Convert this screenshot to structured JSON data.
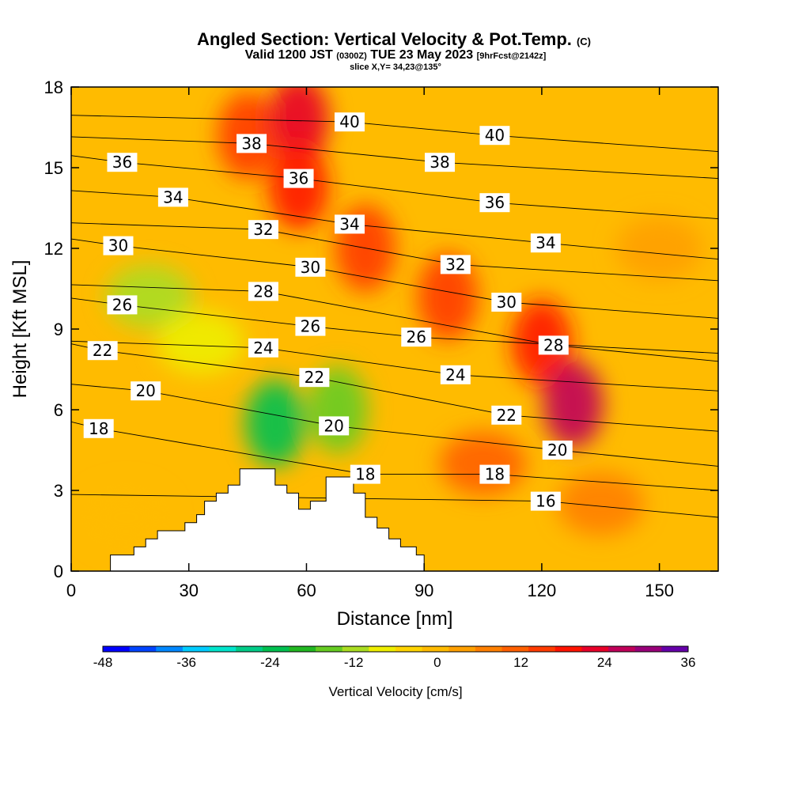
{
  "header": {
    "title": "Angled Section: Vertical Velocity & Pot.Temp.",
    "title_unit": "(C)",
    "valid_prefix": "Valid 1200 JST",
    "valid_utc": "(0300Z)",
    "valid_date": "TUE 23 May 2023",
    "valid_fcst": "[9hrFcst@2142z]",
    "slice": "slice X,Y= 34,23@135°"
  },
  "chart_data": {
    "type": "heatmap",
    "title": "Angled Section: Vertical Velocity & Pot.Temp.",
    "xlabel": "Distance [nm]",
    "ylabel": "Height [Kft MSL]",
    "xlim": [
      0,
      165
    ],
    "ylim": [
      0,
      18
    ],
    "xticks": [
      0,
      30,
      60,
      90,
      120,
      150
    ],
    "yticks": [
      0,
      3,
      6,
      9,
      12,
      15,
      18
    ],
    "field": "Vertical Velocity",
    "colorbar": {
      "label": "Vertical Velocity [cm/s]",
      "min": -48,
      "max": 36,
      "step": 4,
      "tick_values": [
        -48,
        -36,
        -24,
        -12,
        0,
        12,
        24,
        36
      ],
      "colors": [
        "#0000ff",
        "#0044ff",
        "#0088ff",
        "#00ccff",
        "#00e5cc",
        "#00cc88",
        "#00c050",
        "#22b822",
        "#66cc22",
        "#aadd22",
        "#eeee00",
        "#ffd400",
        "#ffbb00",
        "#ffa000",
        "#ff8000",
        "#ff6000",
        "#ff3c00",
        "#ff1400",
        "#e8002a",
        "#c0005a",
        "#99007a",
        "#6600aa"
      ]
    },
    "velocity_cells": [
      {
        "x": 14,
        "y": 2.0,
        "v": 2
      },
      {
        "x": 45,
        "y": 16.2,
        "v": 16
      },
      {
        "x": 58,
        "y": 16.8,
        "v": 26
      },
      {
        "x": 58,
        "y": 14.3,
        "v": 20
      },
      {
        "x": 75,
        "y": 12.0,
        "v": 18
      },
      {
        "x": 120,
        "y": 8.5,
        "v": 22
      },
      {
        "x": 128,
        "y": 6.2,
        "v": 28
      },
      {
        "x": 96,
        "y": 10.2,
        "v": 16
      },
      {
        "x": 52,
        "y": 5.5,
        "v": -22
      },
      {
        "x": 68,
        "y": 6.0,
        "v": -16
      },
      {
        "x": 20,
        "y": 10.2,
        "v": -12
      },
      {
        "x": 33,
        "y": 8.5,
        "v": -8
      },
      {
        "x": 135,
        "y": 2.5,
        "v": 8
      },
      {
        "x": 150,
        "y": 12.0,
        "v": 6
      },
      {
        "x": 105,
        "y": 4.0,
        "v": 14
      }
    ],
    "contour_series": {
      "name": "Pot.Temp.",
      "labels": [
        {
          "value": 40,
          "x": 71,
          "y": 16.7
        },
        {
          "value": 40,
          "x": 108,
          "y": 16.2
        },
        {
          "value": 38,
          "x": 46,
          "y": 15.9
        },
        {
          "value": 38,
          "x": 94,
          "y": 15.2
        },
        {
          "value": 36,
          "x": 13,
          "y": 15.2
        },
        {
          "value": 36,
          "x": 58,
          "y": 14.6
        },
        {
          "value": 36,
          "x": 108,
          "y": 13.7
        },
        {
          "value": 34,
          "x": 26,
          "y": 13.9
        },
        {
          "value": 34,
          "x": 71,
          "y": 12.9
        },
        {
          "value": 34,
          "x": 121,
          "y": 12.2
        },
        {
          "value": 32,
          "x": 49,
          "y": 12.7
        },
        {
          "value": 32,
          "x": 98,
          "y": 11.4
        },
        {
          "value": 30,
          "x": 12,
          "y": 12.1
        },
        {
          "value": 30,
          "x": 61,
          "y": 11.3
        },
        {
          "value": 30,
          "x": 111,
          "y": 10.0
        },
        {
          "value": 28,
          "x": 49,
          "y": 10.4
        },
        {
          "value": 28,
          "x": 123,
          "y": 8.4
        },
        {
          "value": 26,
          "x": 13,
          "y": 9.9
        },
        {
          "value": 26,
          "x": 61,
          "y": 9.1
        },
        {
          "value": 26,
          "x": 88,
          "y": 8.7
        },
        {
          "value": 24,
          "x": 49,
          "y": 8.3
        },
        {
          "value": 24,
          "x": 98,
          "y": 7.3
        },
        {
          "value": 22,
          "x": 8,
          "y": 8.2
        },
        {
          "value": 22,
          "x": 62,
          "y": 7.2
        },
        {
          "value": 22,
          "x": 111,
          "y": 5.8
        },
        {
          "value": 20,
          "x": 19,
          "y": 6.7
        },
        {
          "value": 20,
          "x": 67,
          "y": 5.4
        },
        {
          "value": 20,
          "x": 124,
          "y": 4.5
        },
        {
          "value": 18,
          "x": 7,
          "y": 5.3
        },
        {
          "value": 18,
          "x": 75,
          "y": 3.6
        },
        {
          "value": 18,
          "x": 108,
          "y": 3.6
        },
        {
          "value": 16,
          "x": 121,
          "y": 2.6
        }
      ]
    },
    "terrain_kft": [
      [
        10,
        0.6
      ],
      [
        16,
        0.6
      ],
      [
        16,
        0.9
      ],
      [
        19,
        0.9
      ],
      [
        19,
        1.2
      ],
      [
        22,
        1.2
      ],
      [
        22,
        1.5
      ],
      [
        29,
        1.5
      ],
      [
        29,
        1.8
      ],
      [
        32,
        1.8
      ],
      [
        32,
        2.1
      ],
      [
        34,
        2.1
      ],
      [
        34,
        2.6
      ],
      [
        37,
        2.6
      ],
      [
        37,
        2.9
      ],
      [
        40,
        2.9
      ],
      [
        40,
        3.2
      ],
      [
        43,
        3.2
      ],
      [
        43,
        3.8
      ],
      [
        52,
        3.8
      ],
      [
        52,
        3.2
      ],
      [
        55,
        3.2
      ],
      [
        55,
        2.9
      ],
      [
        58,
        2.9
      ],
      [
        58,
        2.3
      ],
      [
        61,
        2.3
      ],
      [
        61,
        2.6
      ],
      [
        65,
        2.6
      ],
      [
        65,
        3.5
      ],
      [
        72,
        3.5
      ],
      [
        72,
        2.9
      ],
      [
        75,
        2.9
      ],
      [
        75,
        2.0
      ],
      [
        78,
        2.0
      ],
      [
        78,
        1.6
      ],
      [
        81,
        1.6
      ],
      [
        81,
        1.2
      ],
      [
        84,
        1.2
      ],
      [
        84,
        0.9
      ],
      [
        88,
        0.9
      ],
      [
        88,
        0.6
      ],
      [
        90,
        0.6
      ],
      [
        90,
        0
      ]
    ]
  }
}
